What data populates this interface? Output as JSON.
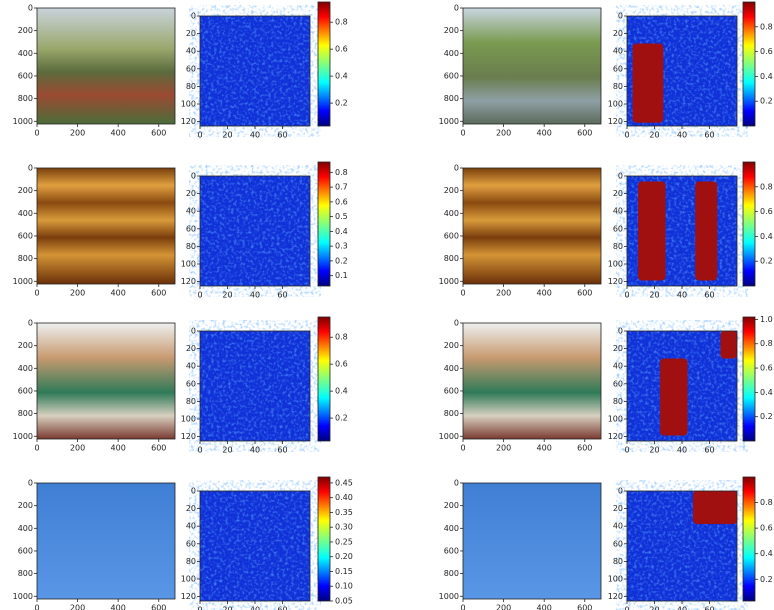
{
  "panels": [
    {
      "image": {
        "xlim": [
          0,
          680
        ],
        "ylim": [
          0,
          1024
        ],
        "xticks": [
          0,
          200,
          400,
          600
        ],
        "yticks": [
          0,
          200,
          400,
          600,
          800,
          1000
        ]
      },
      "heatmap": {
        "xlim": [
          0,
          80
        ],
        "ylim": [
          0,
          125
        ],
        "xticks": [
          0,
          20,
          40,
          60
        ],
        "yticks": [
          0,
          20,
          40,
          60,
          80,
          100,
          120
        ]
      },
      "colorbar": {
        "lim": [
          0.03,
          0.95
        ],
        "ticks": [
          0.2,
          0.4,
          0.6,
          0.8
        ]
      }
    },
    {
      "image": {
        "xlim": [
          0,
          680
        ],
        "ylim": [
          0,
          1024
        ],
        "xticks": [
          0,
          200,
          400,
          600
        ],
        "yticks": [
          0,
          200,
          400,
          600,
          800,
          1000
        ]
      },
      "heatmap": {
        "xlim": [
          0,
          80
        ],
        "ylim": [
          0,
          125
        ],
        "xticks": [
          0,
          20,
          40,
          60
        ],
        "yticks": [
          0,
          20,
          40,
          60,
          80,
          100,
          120
        ]
      },
      "colorbar": {
        "lim": [
          0,
          1
        ],
        "ticks": [
          0.2,
          0.4,
          0.6,
          0.8
        ]
      }
    },
    {
      "image": {
        "xlim": [
          0,
          680
        ],
        "ylim": [
          0,
          1024
        ],
        "xticks": [
          0,
          200,
          400,
          600
        ],
        "yticks": [
          0,
          200,
          400,
          600,
          800,
          1000
        ]
      },
      "heatmap": {
        "xlim": [
          0,
          80
        ],
        "ylim": [
          0,
          125
        ],
        "xticks": [
          0,
          20,
          40,
          60
        ],
        "yticks": [
          0,
          20,
          40,
          60,
          80,
          100,
          120
        ]
      },
      "colorbar": {
        "lim": [
          0.03,
          0.87
        ],
        "ticks": [
          0.1,
          0.2,
          0.3,
          0.4,
          0.5,
          0.6,
          0.7,
          0.8
        ]
      }
    },
    {
      "image": {
        "xlim": [
          0,
          680
        ],
        "ylim": [
          0,
          1024
        ],
        "xticks": [
          0,
          200,
          400,
          600
        ],
        "yticks": [
          0,
          200,
          400,
          600,
          800,
          1000
        ]
      },
      "heatmap": {
        "xlim": [
          0,
          80
        ],
        "ylim": [
          0,
          125
        ],
        "xticks": [
          0,
          20,
          40,
          60
        ],
        "yticks": [
          0,
          20,
          40,
          60,
          80,
          100,
          120
        ]
      },
      "colorbar": {
        "lim": [
          0,
          1
        ],
        "ticks": [
          0.2,
          0.4,
          0.6,
          0.8
        ]
      }
    },
    {
      "image": {
        "xlim": [
          0,
          680
        ],
        "ylim": [
          0,
          1024
        ],
        "xticks": [
          0,
          200,
          400,
          600
        ],
        "yticks": [
          0,
          200,
          400,
          600,
          800,
          1000
        ]
      },
      "heatmap": {
        "xlim": [
          0,
          80
        ],
        "ylim": [
          0,
          125
        ],
        "xticks": [
          0,
          20,
          40,
          60
        ],
        "yticks": [
          0,
          20,
          40,
          60,
          80,
          100,
          120
        ]
      },
      "colorbar": {
        "lim": [
          0.03,
          0.95
        ],
        "ticks": [
          0.2,
          0.4,
          0.6,
          0.8
        ]
      }
    },
    {
      "image": {
        "xlim": [
          0,
          680
        ],
        "ylim": [
          0,
          1024
        ],
        "xticks": [
          0,
          200,
          400,
          600
        ],
        "yticks": [
          0,
          200,
          400,
          600,
          800,
          1000
        ]
      },
      "heatmap": {
        "xlim": [
          0,
          80
        ],
        "ylim": [
          0,
          125
        ],
        "xticks": [
          0,
          20,
          40,
          60
        ],
        "yticks": [
          0,
          20,
          40,
          60,
          80,
          100,
          120
        ]
      },
      "colorbar": {
        "lim": [
          0,
          1.02
        ],
        "ticks": [
          0.2,
          0.4,
          0.6,
          0.8,
          {
            "value": 1,
            "label": "1.0"
          }
        ]
      }
    },
    {
      "image": {
        "xlim": [
          0,
          680
        ],
        "ylim": [
          0,
          1024
        ],
        "xticks": [
          0,
          200,
          400,
          600
        ],
        "yticks": [
          0,
          200,
          400,
          600,
          800,
          1000
        ]
      },
      "heatmap": {
        "xlim": [
          0,
          80
        ],
        "ylim": [
          0,
          125
        ],
        "xticks": [
          0,
          20,
          40,
          60
        ],
        "yticks": [
          0,
          20,
          40,
          60,
          80,
          100,
          120
        ]
      },
      "colorbar": {
        "lim": [
          0.05,
          0.47
        ],
        "ticks": [
          0.05,
          {
            "value": 0.1,
            "label": "0.10"
          },
          0.15,
          {
            "value": 0.2,
            "label": "0.20"
          },
          0.25,
          {
            "value": 0.3,
            "label": "0.30"
          },
          0.35,
          {
            "value": 0.4,
            "label": "0.40"
          },
          0.45
        ]
      }
    },
    {
      "image": {
        "xlim": [
          0,
          680
        ],
        "ylim": [
          0,
          1024
        ],
        "xticks": [
          0,
          200,
          400,
          600
        ],
        "yticks": [
          0,
          200,
          400,
          600,
          800,
          1000
        ]
      },
      "heatmap": {
        "xlim": [
          0,
          80
        ],
        "ylim": [
          0,
          125
        ],
        "xticks": [
          0,
          20,
          40,
          60
        ],
        "yticks": [
          0,
          20,
          40,
          60,
          80,
          100,
          120
        ]
      },
      "colorbar": {
        "lim": [
          0.03,
          1
        ],
        "ticks": [
          0.2,
          0.4,
          0.6,
          0.8
        ]
      }
    }
  ]
}
